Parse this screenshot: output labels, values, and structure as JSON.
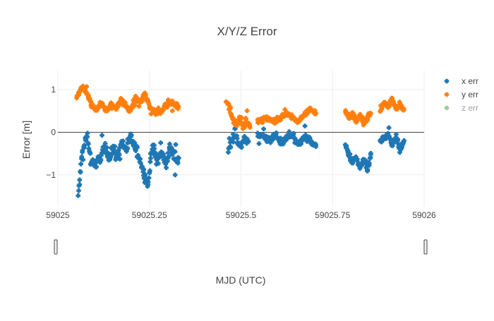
{
  "chart_data": {
    "type": "scatter",
    "title": "X/Y/Z Error",
    "xlabel": "MJD (UTC)",
    "ylabel": "Error [m]",
    "xlim": [
      59025,
      59026
    ],
    "ylim": [
      -1.75,
      1.45
    ],
    "x_ticks": [
      {
        "value": 59025,
        "label": "59025"
      },
      {
        "value": 59025.25,
        "label": "59025.25"
      },
      {
        "value": 59025.5,
        "label": "59025.5"
      },
      {
        "value": 59025.75,
        "label": "59025.75"
      },
      {
        "value": 59026,
        "label": "59026"
      }
    ],
    "y_ticks": [
      {
        "value": 1,
        "label": "1"
      },
      {
        "value": 0,
        "label": "0"
      },
      {
        "value": -1,
        "label": "−1"
      }
    ],
    "grid": true,
    "legend_position": "top-right",
    "series": [
      {
        "name": "x err",
        "color": "#1f77b4",
        "visible": true,
        "segments": [
          {
            "start": 59025.055,
            "end": 59025.33,
            "points": 230,
            "levels": [
              -1.5,
              -0.5,
              -0.1,
              -0.65,
              -0.75,
              -0.6,
              -0.35,
              -0.55,
              -0.4,
              -0.6,
              -0.25,
              -0.4,
              -0.1,
              -0.35,
              -0.6,
              -0.95,
              -1.25,
              -0.3,
              -0.7,
              -0.45,
              -0.75,
              -0.35,
              -0.55,
              -0.65
            ],
            "noise": 0.17
          },
          {
            "start": 59025.465,
            "end": 59025.52,
            "points": 45,
            "levels": [
              -0.45,
              -0.2,
              -0.05,
              -0.25,
              -0.35,
              -0.15,
              -0.25
            ],
            "noise": 0.12
          },
          {
            "start": 59025.545,
            "end": 59025.705,
            "points": 140,
            "levels": [
              -0.1,
              -0.05,
              -0.2,
              -0.05,
              -0.25,
              -0.15,
              -0.05,
              -0.3,
              -0.1,
              -0.2,
              -0.35
            ],
            "noise": 0.1
          },
          {
            "start": 59025.785,
            "end": 59025.855,
            "points": 65,
            "levels": [
              -0.3,
              -0.55,
              -0.7,
              -0.6,
              -0.85,
              -0.65,
              -0.9,
              -0.5
            ],
            "noise": 0.12
          },
          {
            "start": 59025.88,
            "end": 59025.945,
            "points": 60,
            "levels": [
              -0.2,
              -0.15,
              -0.05,
              -0.3,
              -0.1,
              -0.45,
              -0.2
            ],
            "noise": 0.1
          }
        ]
      },
      {
        "name": "y err",
        "color": "#ff7f0e",
        "visible": true,
        "segments": [
          {
            "start": 59025.052,
            "end": 59025.33,
            "points": 230,
            "levels": [
              0.85,
              1.05,
              0.95,
              0.65,
              0.55,
              0.7,
              0.5,
              0.65,
              0.55,
              0.75,
              0.65,
              0.5,
              0.8,
              0.7,
              0.9,
              0.6,
              0.5,
              0.45,
              0.6,
              0.7,
              0.65,
              0.6
            ],
            "noise": 0.09
          },
          {
            "start": 59025.46,
            "end": 59025.525,
            "points": 55,
            "levels": [
              0.75,
              0.55,
              0.3,
              0.2,
              0.35,
              0.1,
              0.3,
              0.15
            ],
            "noise": 0.1
          },
          {
            "start": 59025.545,
            "end": 59025.705,
            "points": 140,
            "levels": [
              0.25,
              0.35,
              0.3,
              0.25,
              0.35,
              0.45,
              0.35,
              0.25,
              0.4,
              0.55,
              0.45
            ],
            "noise": 0.07
          },
          {
            "start": 59025.785,
            "end": 59025.855,
            "points": 65,
            "levels": [
              0.5,
              0.35,
              0.45,
              0.25,
              0.4,
              0.2,
              0.35,
              0.45
            ],
            "noise": 0.07
          },
          {
            "start": 59025.88,
            "end": 59025.945,
            "points": 60,
            "levels": [
              0.5,
              0.7,
              0.6,
              0.8,
              0.55,
              0.65,
              0.55
            ],
            "noise": 0.07
          }
        ]
      },
      {
        "name": "z err",
        "color": "#2ca02c",
        "visible": false,
        "segments": []
      }
    ]
  }
}
